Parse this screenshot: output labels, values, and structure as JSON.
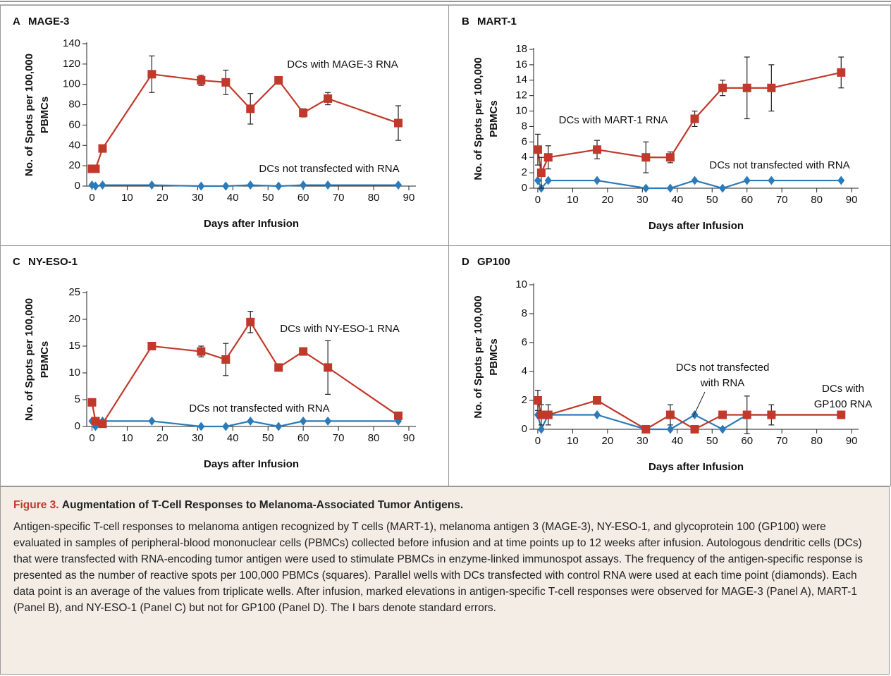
{
  "chart_data": [
    {
      "type": "line",
      "panel": "A",
      "title": "MAGE-3",
      "ylabel": [
        "No. of Spots per 100,000",
        "PBMCs"
      ],
      "xlabel": "Days after Infusion",
      "x": [
        0,
        1,
        3,
        17,
        31,
        38,
        45,
        53,
        60,
        67,
        87
      ],
      "xlim": [
        -1.5,
        92
      ],
      "xticks": [
        0,
        10,
        20,
        30,
        40,
        50,
        60,
        70,
        80,
        90
      ],
      "ylim": [
        0,
        140
      ],
      "yticks": [
        0,
        20,
        40,
        60,
        80,
        100,
        120,
        140
      ],
      "grid": false,
      "series": [
        {
          "color": "#2b7bba",
          "marker": "diamond",
          "values": [
            1,
            0,
            1,
            1,
            0,
            0,
            1,
            0,
            1,
            1,
            1
          ]
        },
        {
          "color": "#c0392b",
          "marker": "square",
          "values": [
            17,
            17,
            37,
            110,
            104,
            102,
            76,
            104,
            72,
            86,
            62
          ],
          "errors": [
            null,
            null,
            null,
            18,
            5,
            12,
            15,
            2,
            4,
            6,
            17
          ]
        }
      ],
      "annotations": [
        [
          "DCs with MAGE-3 RNA"
        ],
        [
          "DCs not transfected with RNA"
        ]
      ]
    },
    {
      "type": "line",
      "panel": "B",
      "title": "MART-1",
      "ylabel": [
        "No. of Spots per 100,000",
        "PBMCs"
      ],
      "xlabel": "Days after Infusion",
      "x": [
        0,
        1,
        3,
        17,
        31,
        38,
        45,
        53,
        60,
        67,
        87
      ],
      "xlim": [
        -1.2,
        92
      ],
      "xticks": [
        0,
        10,
        20,
        30,
        40,
        50,
        60,
        70,
        80,
        90
      ],
      "ylim": [
        0,
        18
      ],
      "yticks": [
        0,
        2,
        4,
        6,
        8,
        10,
        12,
        14,
        16,
        18
      ],
      "grid": false,
      "series": [
        {
          "color": "#2b7bba",
          "marker": "diamond",
          "values": [
            1,
            0,
            1,
            1,
            0,
            0,
            1,
            0,
            1,
            1,
            1
          ]
        },
        {
          "color": "#c0392b",
          "marker": "square",
          "values": [
            5,
            2,
            4,
            5,
            4,
            4,
            9,
            13,
            13,
            13,
            15
          ],
          "errors": [
            2,
            2,
            1.5,
            1.2,
            2,
            0.7,
            1,
            1,
            4,
            3,
            2
          ]
        }
      ],
      "annotations": [
        [
          "DCs with MART-1 RNA"
        ],
        [
          "DCs not transfected with RNA"
        ]
      ]
    },
    {
      "type": "line",
      "panel": "C",
      "title": "NY-ESO-1",
      "ylabel": [
        "No. of Spots per 100,000",
        "PBMCs"
      ],
      "xlabel": "Days after Infusion",
      "x": [
        0,
        1,
        3,
        17,
        31,
        38,
        45,
        53,
        60,
        67,
        87
      ],
      "xlim": [
        -1.5,
        92
      ],
      "xticks": [
        0,
        10,
        20,
        30,
        40,
        50,
        60,
        70,
        80,
        90
      ],
      "ylim": [
        0,
        25
      ],
      "yticks": [
        0,
        5,
        10,
        15,
        20,
        25
      ],
      "grid": false,
      "series": [
        {
          "color": "#2b7bba",
          "marker": "diamond",
          "values": [
            1,
            0,
            1,
            1,
            0,
            0,
            1,
            0,
            1,
            1,
            1
          ]
        },
        {
          "color": "#c0392b",
          "marker": "square",
          "values": [
            4.5,
            1,
            0.5,
            15,
            14,
            12.5,
            19.5,
            11,
            14,
            11,
            2
          ],
          "errors": [
            null,
            null,
            null,
            null,
            1,
            3,
            2,
            null,
            null,
            5,
            null
          ]
        }
      ],
      "annotations": [
        [
          "DCs with NY-ESO-1 RNA"
        ],
        [
          "DCs not transfected with RNA"
        ]
      ]
    },
    {
      "type": "line",
      "panel": "D",
      "title": "GP100",
      "ylabel": [
        "No. of Spots per 100,000",
        "PBMCs"
      ],
      "xlabel": "Days after Infusion",
      "x": [
        0,
        1,
        3,
        17,
        31,
        38,
        45,
        53,
        60,
        67,
        87
      ],
      "xlim": [
        -1.2,
        92
      ],
      "xticks": [
        0,
        10,
        20,
        30,
        40,
        50,
        60,
        70,
        80,
        90
      ],
      "ylim": [
        0,
        10
      ],
      "yticks": [
        0,
        2,
        4,
        6,
        8,
        10
      ],
      "grid": false,
      "series": [
        {
          "color": "#2b7bba",
          "marker": "diamond",
          "values": [
            1,
            0,
            1,
            1,
            0,
            0,
            1,
            0,
            1,
            1,
            1
          ]
        },
        {
          "color": "#c0392b",
          "marker": "square",
          "values": [
            2,
            1,
            1,
            2,
            0,
            1,
            0,
            1,
            1,
            1,
            1
          ],
          "errors": [
            0.7,
            0.7,
            0.7,
            null,
            null,
            0.7,
            null,
            null,
            1.3,
            0.7,
            null
          ]
        }
      ],
      "annotations": [
        [
          "DCs not transfected",
          "with RNA"
        ],
        [
          "DCs with",
          "GP100 RNA"
        ]
      ]
    }
  ],
  "caption": {
    "label": "Figure 3.",
    "title": "Augmentation of T-Cell Responses to Melanoma-Associated Tumor Antigens.",
    "text": "Antigen-specific T-cell responses to melanoma antigen recognized by T cells (MART-1), melanoma antigen 3 (MAGE-3), NY-ESO-1, and glycoprotein 100 (GP100) were evaluated in samples of peripheral-blood mononuclear cells (PBMCs) collected before infusion and at time points up to 12 weeks after infusion. Autologous dendritic cells (DCs) that were transfected with RNA-encoding tumor antigen were used to stimulate PBMCs in enzyme-linked immunospot assays. The frequency of the antigen-specific response is presented as the number of reactive spots per 100,000 PBMCs (squares). Parallel wells with DCs transfected with control RNA were used at each time point (diamonds). Each data point is an average of the values from triplicate wells. After infusion, marked elevations in antigen-specific T-cell responses were observed for MAGE-3 (Panel A), MART-1 (Panel B), and NY-ESO-1 (Panel C) but not for GP100 (Panel D). The I bars denote standard errors."
  }
}
